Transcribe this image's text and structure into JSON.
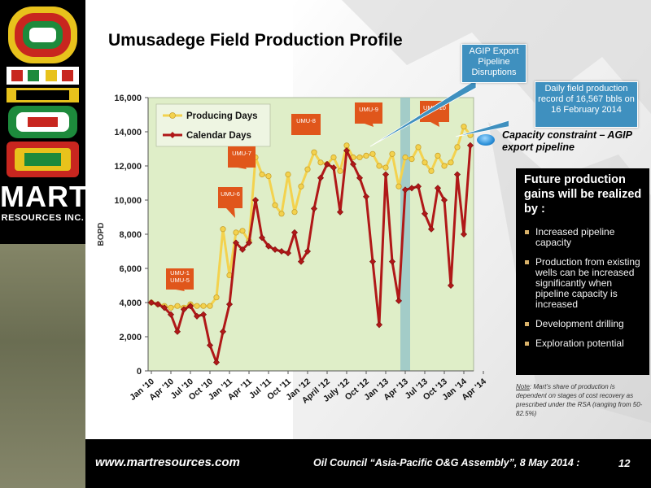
{
  "slide": {
    "title": "Umusadege Field Production Profile",
    "logo_name": "MART",
    "logo_sub": "RESOURCES INC."
  },
  "callouts": {
    "agip": "AGIP Export Pipeline Disruptions",
    "record": "Daily field production record of 16,567 bbls on 16 February 2014"
  },
  "capacity": "Capacity constraint – AGIP export pipeline",
  "future": {
    "heading": "Future production gains will be realized by :",
    "items": [
      "Increased pipeline capacity",
      "Production from existing wells can be increased significantly when pipeline capacity is increased",
      "Development drilling",
      "Exploration potential"
    ]
  },
  "note": {
    "label": "Note",
    "text": ": Mart’s share of production is dependent on stages of cost recovery as prescribed under the RSA (ranging from 50-82.5%)"
  },
  "footer": {
    "url": "www.martresources.com",
    "event": "Oil Council “Asia-Pacific O&G Assembly”, 8 May 2014 :",
    "page": "12"
  },
  "colors": {
    "producing": "#f3d24e",
    "producing_stroke": "#c9a12c",
    "calendar": "#b01818",
    "plot_bg": "#dfeec8",
    "disruption_band": "#8fc0c8",
    "well_label": "#e0561b",
    "callout": "#3f90bf"
  },
  "chart_data": {
    "type": "line",
    "ylabel": "BOPD",
    "xlabel": "",
    "ylim": [
      0,
      16000
    ],
    "yticks": [
      "0",
      "2,000",
      "4,000",
      "6,000",
      "8,000",
      "10,000",
      "12,000",
      "14,000",
      "16,000"
    ],
    "start_month": "Jan '10",
    "x_tick_labels": [
      "Jan '10",
      "Apr '10",
      "Jul '10",
      "Oct '10",
      "Jan '11",
      "Apr '11",
      "Jul '11",
      "Oct '11",
      "Jan '12",
      "April '12",
      "July '12",
      "Oct '12",
      "Jan '13",
      "Apr '13",
      "Jul '13",
      "Oct '13",
      "Jan '14",
      "Apr '14"
    ],
    "x_tick_months": [
      "Jan '10",
      "Apr '10",
      "Jul '10",
      "Oct '10",
      "Jan '11",
      "Apr '11",
      "Jul '11",
      "Oct '11",
      "Jan '12",
      "April '12",
      "July '12",
      "Oct '12",
      "Jan '13",
      "Apr '13",
      "Jul '13",
      "Oct '13",
      "Jan '14",
      "Apr '14"
    ],
    "legend_position": "top-left",
    "grid": false,
    "series": [
      {
        "name": "Producing Days",
        "values": [
          4000,
          3900,
          3800,
          3700,
          3800,
          3700,
          3900,
          3800,
          3800,
          3800,
          4300,
          8300,
          5600,
          8100,
          8200,
          7600,
          12500,
          11500,
          11400,
          9700,
          9200,
          11500,
          9300,
          10800,
          11800,
          12800,
          12200,
          12100,
          12500,
          11700,
          13200,
          12500,
          12500,
          12600,
          12700,
          12000,
          11900,
          12700,
          10800,
          12500,
          12400,
          13100,
          12200,
          11700,
          12600,
          12000,
          12200,
          13100,
          14300,
          13800
        ]
      },
      {
        "name": "Calendar Days",
        "values": [
          4000,
          3900,
          3700,
          3300,
          2300,
          3600,
          3800,
          3200,
          3300,
          1500,
          500,
          2300,
          3900,
          7500,
          7100,
          7500,
          10000,
          7800,
          7300,
          7100,
          7000,
          6900,
          8100,
          6400,
          7000,
          9500,
          11300,
          12100,
          11900,
          9300,
          12900,
          12100,
          11300,
          10200,
          6400,
          2700,
          11500,
          6400,
          4100,
          10600,
          10700,
          10800,
          9200,
          8300,
          10700,
          10000,
          5000,
          11500,
          8000,
          13200
        ]
      }
    ],
    "annotations": [
      {
        "text": "UMU-1 UMU-5",
        "month": "Jan '11"
      },
      {
        "text": "UMU-6",
        "month": "Jan '11"
      },
      {
        "text": "UMU-7",
        "month": "Jul '11"
      },
      {
        "text": "UMU-8",
        "month": "April '12"
      },
      {
        "text": "UMU-9",
        "month": "Jan '13"
      },
      {
        "text": "UMU-10",
        "month": "Oct '13"
      }
    ],
    "highlight_band": {
      "from": "Apr '13",
      "to": "Apr '13"
    }
  }
}
